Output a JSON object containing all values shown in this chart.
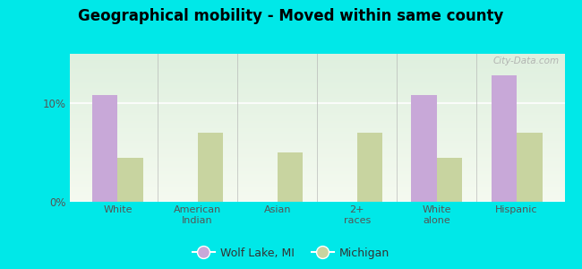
{
  "title": "Geographical mobility - Moved within same county",
  "categories": [
    "White",
    "American\nIndian",
    "Asian",
    "2+\nraces",
    "White\nalone",
    "Hispanic"
  ],
  "wolf_lake": [
    10.8,
    0,
    0,
    0,
    10.8,
    12.8
  ],
  "michigan": [
    4.5,
    7.0,
    5.0,
    7.0,
    4.5,
    7.0
  ],
  "wolf_lake_color": "#c8a8d8",
  "michigan_color": "#c8d4a0",
  "plot_bg_top": "#f0faf0",
  "plot_bg_bottom": "#e0f5e0",
  "outer_background": "#00e8e8",
  "ylim": [
    0,
    15
  ],
  "yticks": [
    0,
    10
  ],
  "ytick_labels": [
    "0%",
    "10%"
  ],
  "bar_width": 0.32,
  "legend_wolf_lake": "Wolf Lake, MI",
  "legend_michigan": "Michigan",
  "title_fontsize": 12,
  "watermark": "City-Data.com"
}
